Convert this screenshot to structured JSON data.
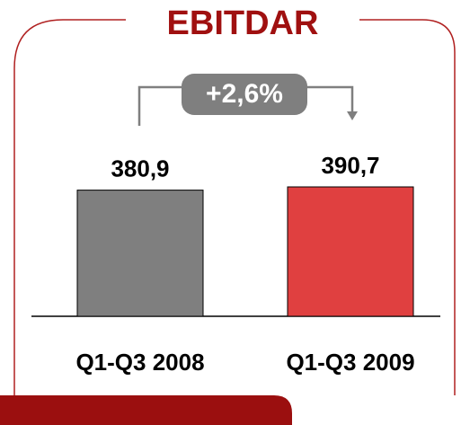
{
  "chart_data": {
    "type": "bar",
    "title": "EBITDAR",
    "categories": [
      "Q1-Q3 2008",
      "Q1-Q3 2009"
    ],
    "values": [
      380.9,
      390.7
    ],
    "value_labels": [
      "380,9",
      "390,7"
    ],
    "colors": [
      "#7f7f7f",
      "#e04040"
    ],
    "annotation": "+2,6%"
  }
}
